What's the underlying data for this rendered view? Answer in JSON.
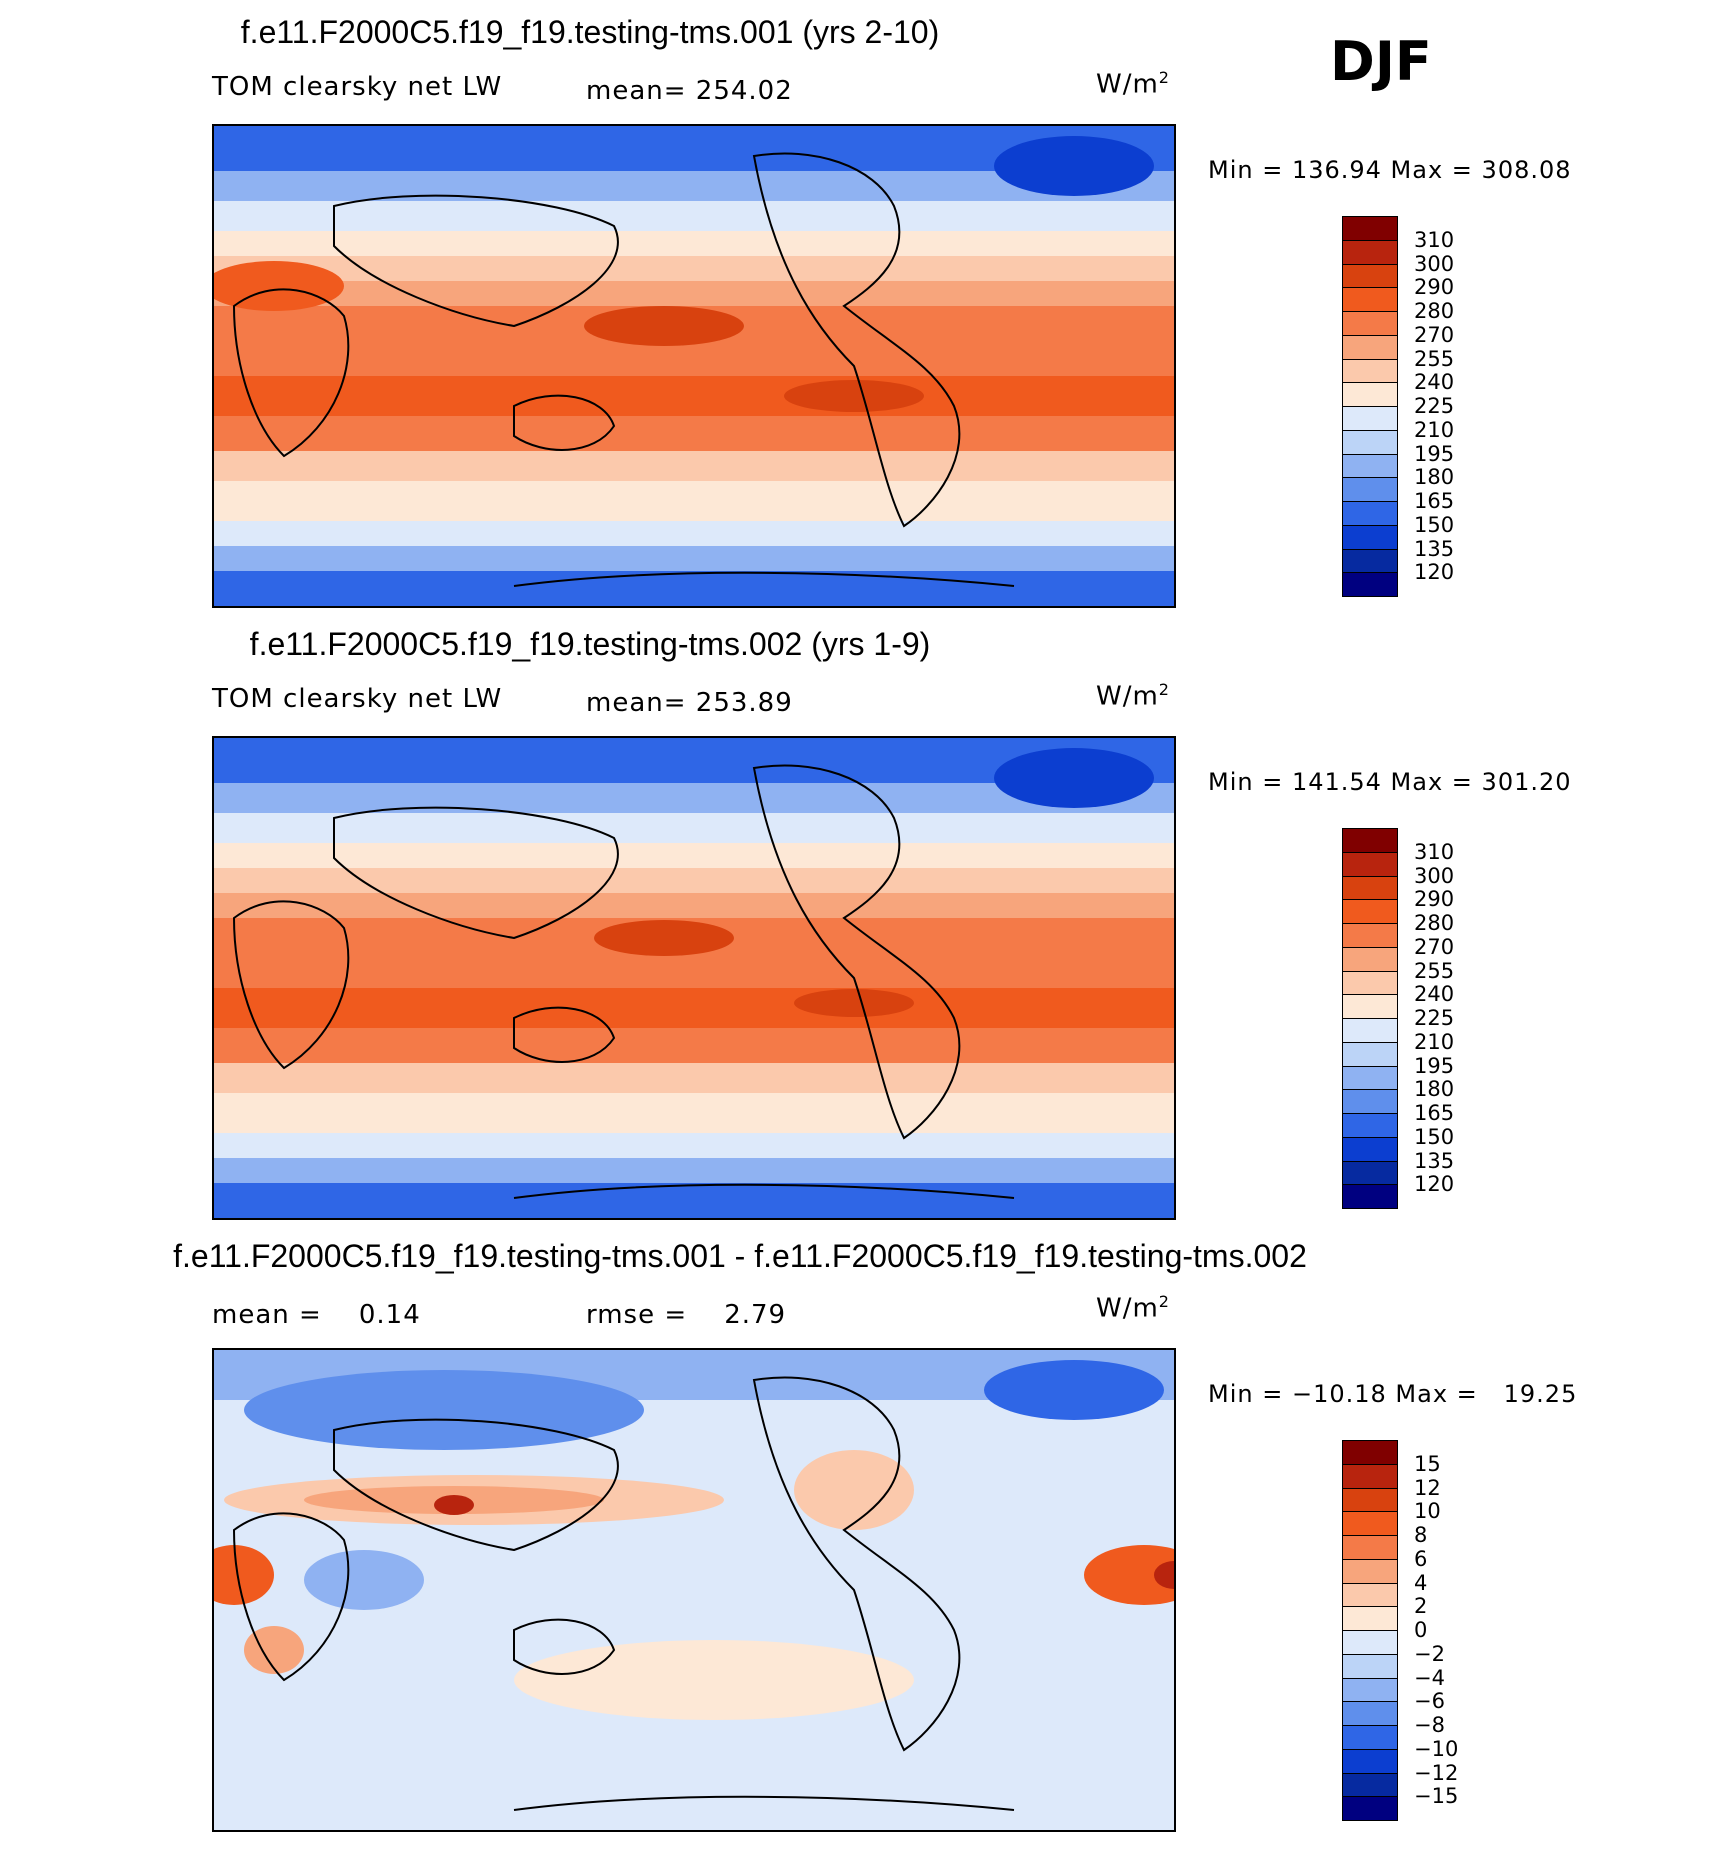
{
  "season": "DJF",
  "panels": [
    {
      "title": "f.e11.F2000C5.f19_f19.testing-tms.001 (yrs 2-10)",
      "left_label": "TOM clearsky net LW",
      "mid_label": "mean= 254.02",
      "units_base": "W/m",
      "units_exp": "2",
      "minmax": "Min = 136.94 Max = 308.08"
    },
    {
      "title": "f.e11.F2000C5.f19_f19.testing-tms.002 (yrs 1-9)",
      "left_label": "TOM clearsky net LW",
      "mid_label": "mean= 253.89",
      "units_base": "W/m",
      "units_exp": "2",
      "minmax": "Min = 141.54 Max = 301.20"
    },
    {
      "title": "f.e11.F2000C5.f19_f19.testing-tms.001 - f.e11.F2000C5.f19_f19.testing-tms.002",
      "left_label": "mean =    0.14",
      "mid_label": "rmse =    2.79",
      "units_base": "W/m",
      "units_exp": "2",
      "minmax": "Min = −10.18 Max =   19.25"
    }
  ],
  "colorbar_main": {
    "labels": [
      "310",
      "300",
      "290",
      "280",
      "270",
      "255",
      "240",
      "225",
      "210",
      "195",
      "180",
      "165",
      "150",
      "135",
      "120"
    ],
    "colors": [
      "#800000",
      "#b8240e",
      "#d8420f",
      "#f05a1e",
      "#f47a48",
      "#f7a57c",
      "#fbc9ac",
      "#fde8d6",
      "#dde9fa",
      "#bcd4f7",
      "#8fb2f2",
      "#5f8fec",
      "#2f66e6",
      "#0c3ed0",
      "#062aa0",
      "#000080"
    ]
  },
  "colorbar_diff": {
    "labels": [
      "15",
      "12",
      "10",
      "8",
      "6",
      "4",
      "2",
      "0",
      "−2",
      "−4",
      "−6",
      "−8",
      "−10",
      "−12",
      "−15"
    ],
    "colors": [
      "#800000",
      "#b8240e",
      "#d8420f",
      "#f05a1e",
      "#f47a48",
      "#f7a57c",
      "#fbc9ac",
      "#fde8d6",
      "#dde9fa",
      "#bcd4f7",
      "#8fb2f2",
      "#5f8fec",
      "#2f66e6",
      "#0c3ed0",
      "#062aa0",
      "#000080"
    ]
  },
  "chart_data": [
    {
      "type": "heatmap",
      "title": "f.e11.F2000C5.f19_f19.testing-tms.001 (yrs 2-10)",
      "variable": "TOM clearsky net LW",
      "units": "W/m2",
      "mean": 254.02,
      "min": 136.94,
      "max": 308.08,
      "levels": [
        120,
        135,
        150,
        165,
        180,
        195,
        210,
        225,
        240,
        255,
        270,
        280,
        290,
        300,
        310
      ]
    },
    {
      "type": "heatmap",
      "title": "f.e11.F2000C5.f19_f19.testing-tms.002 (yrs 1-9)",
      "variable": "TOM clearsky net LW",
      "units": "W/m2",
      "mean": 253.89,
      "min": 141.54,
      "max": 301.2,
      "levels": [
        120,
        135,
        150,
        165,
        180,
        195,
        210,
        225,
        240,
        255,
        270,
        280,
        290,
        300,
        310
      ]
    },
    {
      "type": "heatmap",
      "title": "f.e11.F2000C5.f19_f19.testing-tms.001 - f.e11.F2000C5.f19_f19.testing-tms.002",
      "units": "W/m2",
      "mean": 0.14,
      "rmse": 2.79,
      "min": -10.18,
      "max": 19.25,
      "levels": [
        -15,
        -12,
        -10,
        -8,
        -6,
        -4,
        -2,
        0,
        2,
        4,
        6,
        8,
        10,
        12,
        15
      ]
    }
  ]
}
